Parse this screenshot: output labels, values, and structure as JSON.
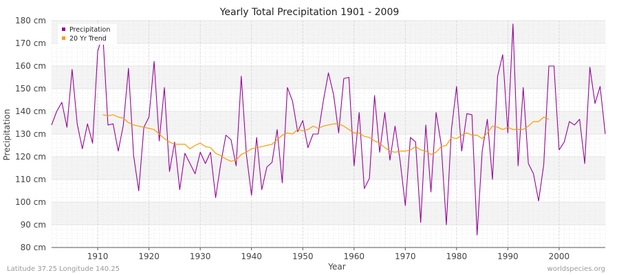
{
  "chart_data": {
    "type": "line",
    "title": "Yearly Total Precipitation 1901 - 2009",
    "xlabel": "Year",
    "ylabel": "Precipitation",
    "xlim": [
      1901,
      2009
    ],
    "ylim": [
      80,
      180
    ],
    "x_ticks": [
      1910,
      1920,
      1930,
      1940,
      1950,
      1960,
      1970,
      1980,
      1990,
      2000
    ],
    "y_ticks": [
      {
        "value": 80,
        "label": "80 cm"
      },
      {
        "value": 90,
        "label": "90 cm"
      },
      {
        "value": 100,
        "label": "100 cm"
      },
      {
        "value": 110,
        "label": "110 cm"
      },
      {
        "value": 120,
        "label": "120 cm"
      },
      {
        "value": 130,
        "label": "130 cm"
      },
      {
        "value": 140,
        "label": "140 cm"
      },
      {
        "value": 150,
        "label": "150 cm"
      },
      {
        "value": 160,
        "label": "160 cm"
      },
      {
        "value": 170,
        "label": "170 cm"
      },
      {
        "value": 180,
        "label": "180 cm"
      }
    ],
    "grid": true,
    "legend_position": "top-left",
    "series": [
      {
        "name": "Precipitation",
        "color": "#990099",
        "x_start": 1901,
        "values": [
          134.0,
          140.0,
          144.0,
          133.0,
          158.5,
          134.5,
          123.5,
          134.5,
          126.0,
          166.5,
          174.0,
          134.0,
          134.5,
          122.5,
          134.0,
          159.0,
          120.5,
          105.0,
          133.0,
          137.5,
          162.0,
          127.0,
          150.5,
          113.5,
          126.5,
          105.5,
          121.5,
          117.0,
          112.5,
          122.0,
          117.0,
          122.0,
          102.0,
          117.0,
          129.5,
          127.5,
          116.0,
          155.5,
          121.0,
          103.0,
          128.5,
          105.5,
          115.5,
          117.5,
          132.0,
          108.5,
          150.5,
          144.5,
          131.0,
          136.0,
          124.0,
          130.0,
          130.0,
          144.5,
          157.0,
          147.5,
          130.5,
          154.5,
          155.0,
          116.0,
          139.5,
          106.0,
          110.5,
          147.0,
          122.0,
          139.5,
          118.5,
          133.5,
          118.0,
          98.5,
          128.5,
          126.5,
          91.0,
          134.0,
          104.5,
          139.5,
          125.5,
          90.0,
          132.0,
          151.0,
          122.5,
          139.0,
          138.5,
          85.5,
          122.5,
          136.5,
          110.0,
          155.5,
          165.0,
          130.5,
          178.5,
          116.0,
          150.5,
          117.0,
          112.5,
          100.5,
          116.5,
          160.0,
          160.0,
          123.0,
          126.5,
          135.5,
          134.0,
          136.5,
          117.0,
          159.5,
          143.5,
          151.0,
          130.0
        ]
      },
      {
        "name": "20 Yr Trend",
        "color": "#ff9900",
        "x_start": 1911,
        "values": [
          138.5,
          138.0,
          138.5,
          137.5,
          137.0,
          135.0,
          134.0,
          133.5,
          133.0,
          132.5,
          132.0,
          130.0,
          128.0,
          126.5,
          125.5,
          125.5,
          125.5,
          123.5,
          125.0,
          126.0,
          124.5,
          124.0,
          121.5,
          120.5,
          119.0,
          118.0,
          118.5,
          121.0,
          122.0,
          123.5,
          124.0,
          124.5,
          125.0,
          125.5,
          127.5,
          129.5,
          130.5,
          130.0,
          132.0,
          131.5,
          132.0,
          133.5,
          132.5,
          133.5,
          134.0,
          134.5,
          134.5,
          133.5,
          132.0,
          130.5,
          130.5,
          129.0,
          128.5,
          127.0,
          126.0,
          124.0,
          122.5,
          122.0,
          122.5,
          122.5,
          123.0,
          124.5,
          123.0,
          122.5,
          121.0,
          122.0,
          124.5,
          125.0,
          128.5,
          128.0,
          129.5,
          130.5,
          129.5,
          129.5,
          128.0,
          130.5,
          133.5,
          133.0,
          132.0,
          133.0,
          132.0,
          132.0,
          132.0,
          133.5,
          135.5,
          135.5,
          137.5,
          136.5
        ]
      }
    ],
    "annotations": {
      "footer_left": "Latitude 37.25 Longitude 140.25",
      "footer_right": "worldspecies.org"
    }
  }
}
